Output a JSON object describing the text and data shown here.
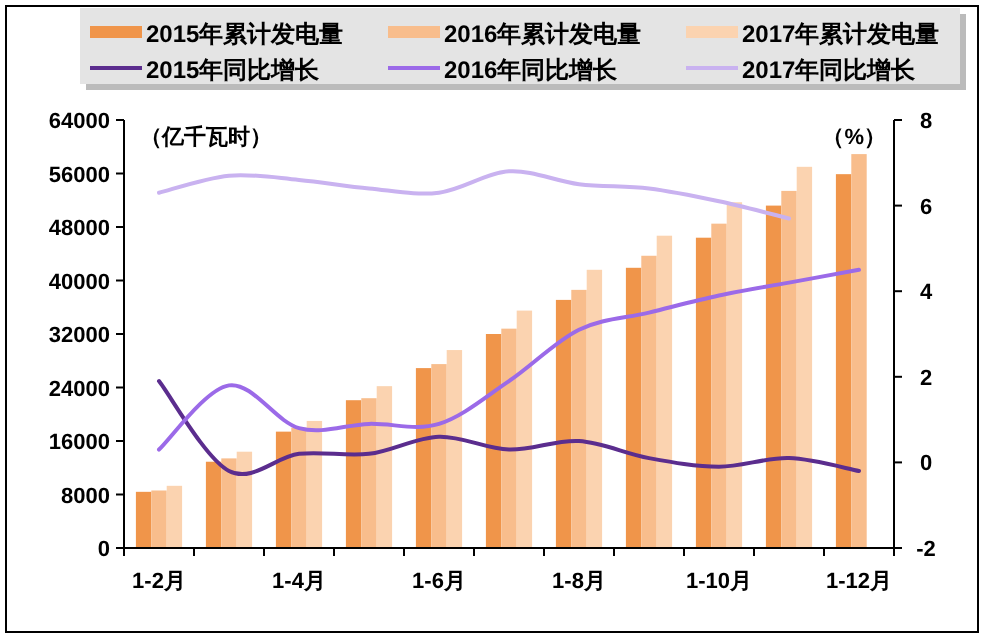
{
  "chart_data": {
    "type": "bar",
    "ylabel": "（亿千瓦时）",
    "y2label": "（%）",
    "categories": [
      "1-2月",
      null,
      "1-4月",
      null,
      "1-6月",
      null,
      "1-8月",
      null,
      "1-10月",
      null,
      "1-12月"
    ],
    "series": [
      {
        "name": "2015年累计发电量",
        "color": "#f0954a",
        "values": [
          8400,
          12900,
          17400,
          22100,
          26900,
          32000,
          37100,
          41900,
          46400,
          51200,
          55900
        ]
      },
      {
        "name": "2016年累计发电量",
        "color": "#f8bd8c",
        "values": [
          8600,
          13400,
          18000,
          22400,
          27500,
          32800,
          38600,
          43700,
          48500,
          53400,
          58900
        ]
      },
      {
        "name": "2017年累计发电量",
        "color": "#fbd3b0",
        "values": [
          9300,
          14400,
          19000,
          24200,
          29600,
          35500,
          41600,
          46700,
          51700,
          57000,
          null
        ]
      },
      {
        "name": "2015年同比增长",
        "type": "line",
        "axis": "y2",
        "color": "#5b2d8e",
        "values": [
          1.9,
          -0.2,
          0.2,
          0.2,
          0.6,
          0.3,
          0.5,
          0.1,
          -0.1,
          0.1,
          -0.2
        ]
      },
      {
        "name": "2016年同比增长",
        "type": "line",
        "axis": "y2",
        "color": "#9b6ae8",
        "values": [
          0.3,
          1.8,
          0.8,
          0.9,
          0.9,
          1.9,
          3.1,
          3.5,
          3.9,
          4.2,
          4.5
        ]
      },
      {
        "name": "2017年同比增长",
        "type": "line",
        "axis": "y2",
        "color": "#c9b2f0",
        "values": [
          6.3,
          6.7,
          6.6,
          6.4,
          6.3,
          6.8,
          6.5,
          6.4,
          6.1,
          5.7,
          null
        ]
      }
    ],
    "ylim": [
      0,
      64000
    ],
    "yticks": [
      0,
      8000,
      16000,
      24000,
      32000,
      40000,
      48000,
      56000,
      64000
    ],
    "y2lim": [
      -2,
      8
    ],
    "y2ticks": [
      -2,
      0,
      2,
      4,
      6,
      8
    ],
    "legend": "top",
    "grid": false
  }
}
